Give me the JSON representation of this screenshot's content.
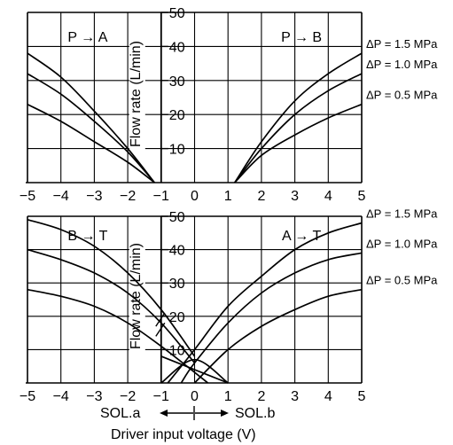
{
  "chart_data": [
    {
      "type": "line",
      "panel": "top",
      "x_range": [
        -5,
        5
      ],
      "ylim": [
        0,
        50
      ],
      "x_ticks": [
        "−5",
        "−4",
        "−3",
        "−2",
        "−1",
        "0",
        "1",
        "2",
        "3",
        "4",
        "5"
      ],
      "y_ticks": [
        "10",
        "20",
        "30",
        "40",
        "50"
      ],
      "ylabel": "Flow rate (L/min)",
      "grid": true,
      "left_title": "P → A",
      "right_title": "P → B",
      "series": [
        {
          "name": "ΔP = 1.5 MPa",
          "left": {
            "x": [
              -5,
              -4,
              -3,
              -2,
              -1.2
            ],
            "y": [
              38,
              31,
              21,
              10,
              0
            ]
          },
          "right": {
            "x": [
              1.2,
              2,
              3,
              4,
              5
            ],
            "y": [
              0,
              12,
              24,
              32,
              38
            ]
          }
        },
        {
          "name": "ΔP = 1.0 MPa",
          "left": {
            "x": [
              -5,
              -4,
              -3,
              -2,
              -1.2
            ],
            "y": [
              32,
              26,
              18,
              9,
              0
            ]
          },
          "right": {
            "x": [
              1.2,
              2,
              3,
              4,
              5
            ],
            "y": [
              0,
              10,
              20,
              27,
              32
            ]
          }
        },
        {
          "name": "ΔP = 0.5 MPa",
          "left": {
            "x": [
              -5,
              -4,
              -3,
              -2,
              -1.2
            ],
            "y": [
              23,
              18,
              12,
              6,
              0
            ]
          },
          "right": {
            "x": [
              1.2,
              2,
              3,
              4,
              5
            ],
            "y": [
              0,
              8,
              14,
              19,
              23
            ]
          }
        }
      ]
    },
    {
      "type": "line",
      "panel": "bottom",
      "x_range": [
        -5,
        5
      ],
      "ylim": [
        0,
        50
      ],
      "x_ticks": [
        "−5",
        "−4",
        "−3",
        "−2",
        "−1",
        "0",
        "1",
        "2",
        "3",
        "4",
        "5"
      ],
      "y_ticks": [
        "10",
        "20",
        "30",
        "40",
        "50"
      ],
      "ylabel": "Flow rate (L/min)",
      "grid": true,
      "left_title": "B → T",
      "right_title": "A → T",
      "series": [
        {
          "name": "ΔP = 1.5 MPa",
          "left": {
            "x": [
              -5,
              -4,
              -3,
              -2,
              -1,
              0
            ],
            "y": [
              49,
              46,
              41,
              33,
              22,
              8
            ]
          },
          "right": {
            "x": [
              -0.8,
              0,
              1,
              2,
              3,
              4,
              5
            ],
            "y": [
              0,
              10,
              23,
              32,
              40,
              45,
              48
            ]
          }
        },
        {
          "name": "ΔP = 1.0 MPa",
          "left": {
            "x": [
              -5,
              -4,
              -3,
              -2,
              -1,
              0
            ],
            "y": [
              40,
              37,
              33,
              27,
              18,
              6
            ]
          },
          "right": {
            "x": [
              -0.4,
              0,
              1,
              2,
              3,
              4,
              5
            ],
            "y": [
              0,
              6,
              18,
              27,
              33,
              37,
              39
            ]
          }
        },
        {
          "name": "ΔP = 0.5 MPa",
          "left": {
            "x": [
              -5,
              -4,
              -3,
              -2,
              -1,
              0.4
            ],
            "y": [
              28,
              26,
              23,
              18,
              11,
              0
            ]
          },
          "right": {
            "x": [
              0,
              1,
              2,
              3,
              4,
              5
            ],
            "y": [
              0,
              10,
              17,
              22,
              26,
              28
            ]
          }
        },
        {
          "name": "",
          "left": {
            "x": [
              -1,
              0,
              1
            ],
            "y": [
              0,
              7,
              0
            ]
          },
          "right": {
            "x": [
              -1,
              0,
              1
            ],
            "y": [
              8,
              4,
              0
            ]
          }
        }
      ]
    }
  ],
  "footer": {
    "sol_a": "SOL.a",
    "sol_b": "SOL.b",
    "xlabel": "Driver input voltage (V)"
  }
}
